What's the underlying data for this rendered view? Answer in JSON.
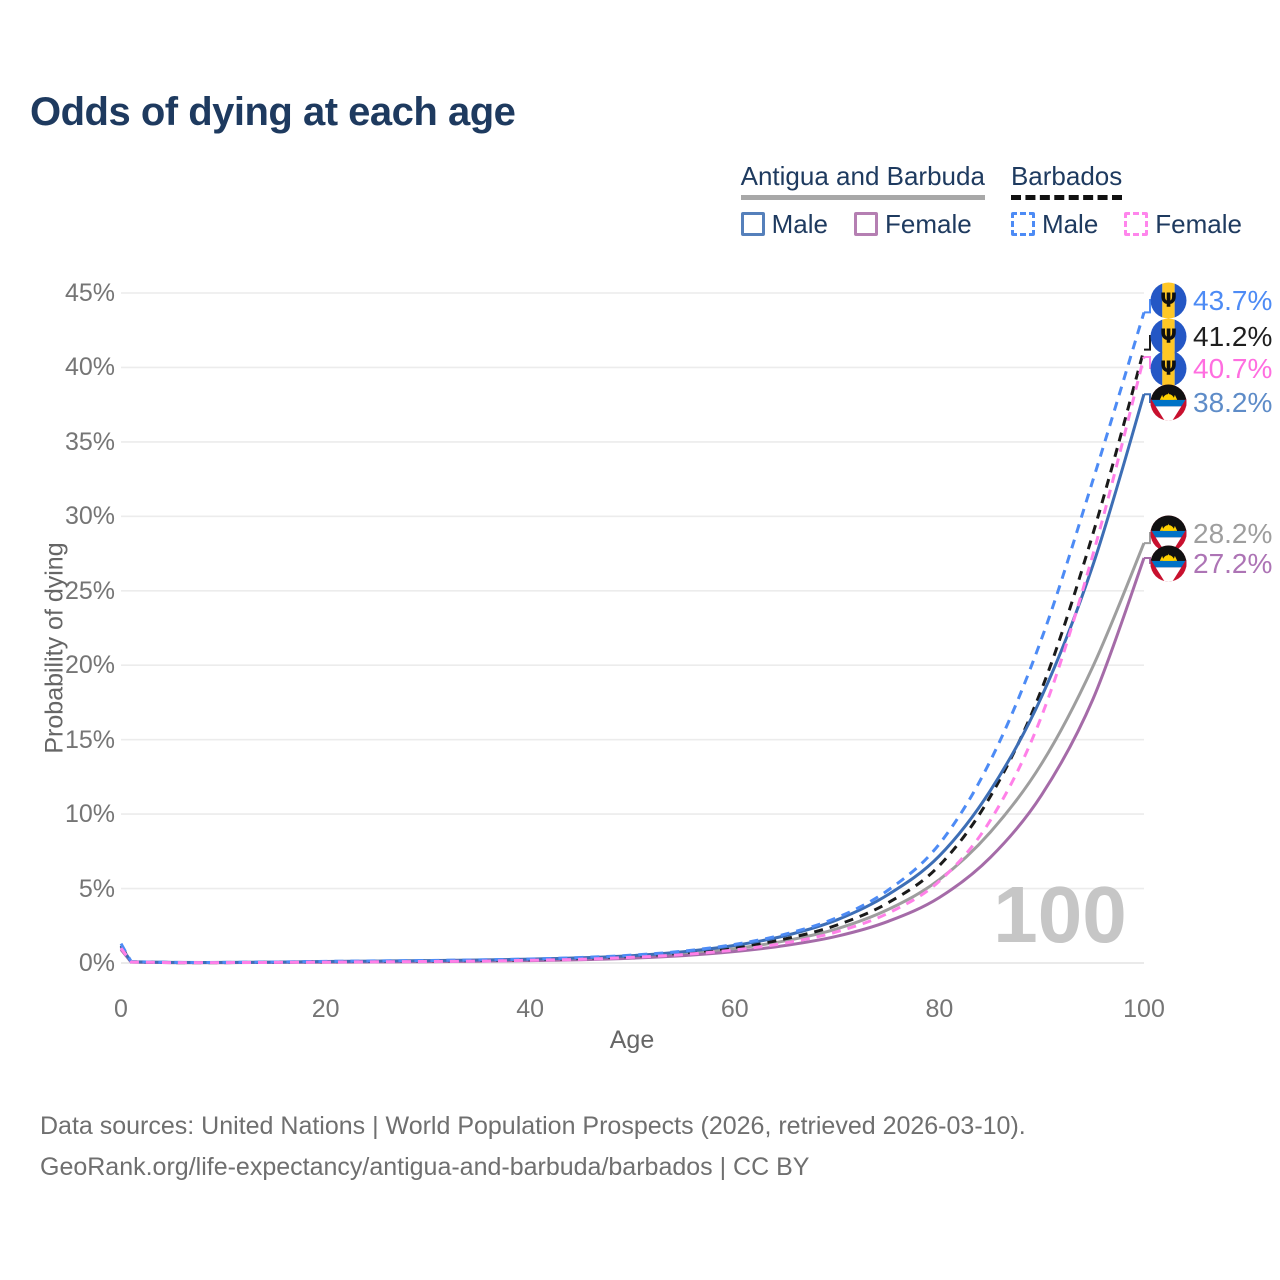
{
  "header": {
    "title": "Odds of dying at each age"
  },
  "legend": {
    "groups": [
      {
        "country": "Antigua and Barbuda",
        "line_style": "solid",
        "line_color": "#a8a8a8",
        "items": [
          {
            "label": "Male",
            "color": "#5580bb",
            "style": "solid"
          },
          {
            "label": "Female",
            "color": "#b57fb2",
            "style": "solid"
          }
        ]
      },
      {
        "country": "Barbados",
        "line_style": "dashed",
        "line_color": "#111111",
        "items": [
          {
            "label": "Male",
            "color": "#4d8bf5",
            "style": "dashed"
          },
          {
            "label": "Female",
            "color": "#ff85ec",
            "style": "dashed"
          }
        ]
      }
    ]
  },
  "chart_data": {
    "type": "line",
    "title": "Odds of dying at each age",
    "xlabel": "Age",
    "ylabel": "Probability of dying",
    "xlim": [
      0,
      100
    ],
    "ylim": [
      0,
      45
    ],
    "x_ticks": [
      0,
      20,
      40,
      60,
      80,
      100
    ],
    "y_ticks": [
      0,
      5,
      10,
      15,
      20,
      25,
      30,
      35,
      40,
      45
    ],
    "y_tick_suffix": "%",
    "grid": "horizontal",
    "legend_position": "top-right",
    "watermark": "100",
    "x": [
      0,
      1,
      5,
      10,
      15,
      20,
      25,
      30,
      35,
      40,
      45,
      50,
      55,
      60,
      65,
      70,
      75,
      80,
      85,
      90,
      95,
      100
    ],
    "series": [
      {
        "name": "Barbados Male",
        "country": "Barbados",
        "sex": "male",
        "dashed": true,
        "color": "#4d8bf5",
        "label_color": "#4d8bf5",
        "end_label": "43.7%",
        "flag": "barbados",
        "values": [
          1.3,
          0.09,
          0.04,
          0.04,
          0.07,
          0.11,
          0.14,
          0.17,
          0.21,
          0.27,
          0.37,
          0.53,
          0.8,
          1.25,
          1.95,
          3.05,
          4.9,
          8.0,
          13.6,
          21.8,
          32.4,
          43.7
        ]
      },
      {
        "name": "Barbados",
        "country": "Barbados",
        "sex": "both",
        "dashed": true,
        "color": "#1a1a1a",
        "label_color": "#1f1f1f",
        "end_label": "41.2%",
        "flag": "barbados",
        "values": [
          1.15,
          0.08,
          0.03,
          0.03,
          0.05,
          0.09,
          0.11,
          0.14,
          0.17,
          0.22,
          0.31,
          0.45,
          0.68,
          1.05,
          1.63,
          2.55,
          4.05,
          6.55,
          11.2,
          18.4,
          28.8,
          41.2
        ]
      },
      {
        "name": "Barbados Female",
        "country": "Barbados",
        "sex": "female",
        "dashed": true,
        "color": "#ff80e8",
        "label_color": "#ff6ee0",
        "end_label": "40.7%",
        "flag": "barbados",
        "values": [
          1.0,
          0.07,
          0.03,
          0.03,
          0.04,
          0.06,
          0.08,
          0.1,
          0.13,
          0.18,
          0.25,
          0.38,
          0.57,
          0.88,
          1.35,
          2.1,
          3.35,
          5.5,
          9.6,
          16.6,
          27.4,
          40.7
        ]
      },
      {
        "name": "Antigua and Barbuda Male",
        "country": "Antigua and Barbuda",
        "sex": "male",
        "dashed": false,
        "color": "#3d6eb5",
        "label_color": "#5e8cc8",
        "end_label": "38.2%",
        "flag": "antigua",
        "values": [
          1.1,
          0.08,
          0.04,
          0.04,
          0.06,
          0.1,
          0.13,
          0.16,
          0.2,
          0.26,
          0.35,
          0.5,
          0.76,
          1.18,
          1.85,
          2.9,
          4.6,
          7.2,
          11.6,
          17.9,
          26.7,
          38.2
        ]
      },
      {
        "name": "Antigua and Barbuda",
        "country": "Antigua and Barbuda",
        "sex": "both",
        "dashed": false,
        "color": "#9e9e9e",
        "label_color": "#9e9e9e",
        "end_label": "28.2%",
        "flag": "antigua",
        "values": [
          1.0,
          0.07,
          0.03,
          0.03,
          0.05,
          0.08,
          0.1,
          0.13,
          0.16,
          0.21,
          0.29,
          0.42,
          0.63,
          0.97,
          1.5,
          2.3,
          3.6,
          5.6,
          8.8,
          13.4,
          19.9,
          28.2
        ]
      },
      {
        "name": "Antigua and Barbuda Female",
        "country": "Antigua and Barbuda",
        "sex": "female",
        "dashed": false,
        "color": "#a56ba8",
        "label_color": "#ad74b5",
        "end_label": "27.2%",
        "flag": "antigua",
        "values": [
          0.9,
          0.06,
          0.03,
          0.03,
          0.04,
          0.05,
          0.07,
          0.09,
          0.12,
          0.16,
          0.22,
          0.33,
          0.5,
          0.77,
          1.18,
          1.8,
          2.8,
          4.4,
          7.1,
          11.3,
          17.7,
          27.2
        ]
      }
    ]
  },
  "colors": {
    "title_navy": "#1e3a5f",
    "tick_gray": "#757575",
    "grid_gray": "#ececec",
    "watermark_gray": "#c6c6c6",
    "footer_gray": "#6f6f6f"
  },
  "footer": {
    "line1": "Data sources: United Nations | World Population Prospects (2026, retrieved 2026-03-10).",
    "line2": "GeoRank.org/life-expectancy/antigua-and-barbuda/barbados | CC BY"
  }
}
